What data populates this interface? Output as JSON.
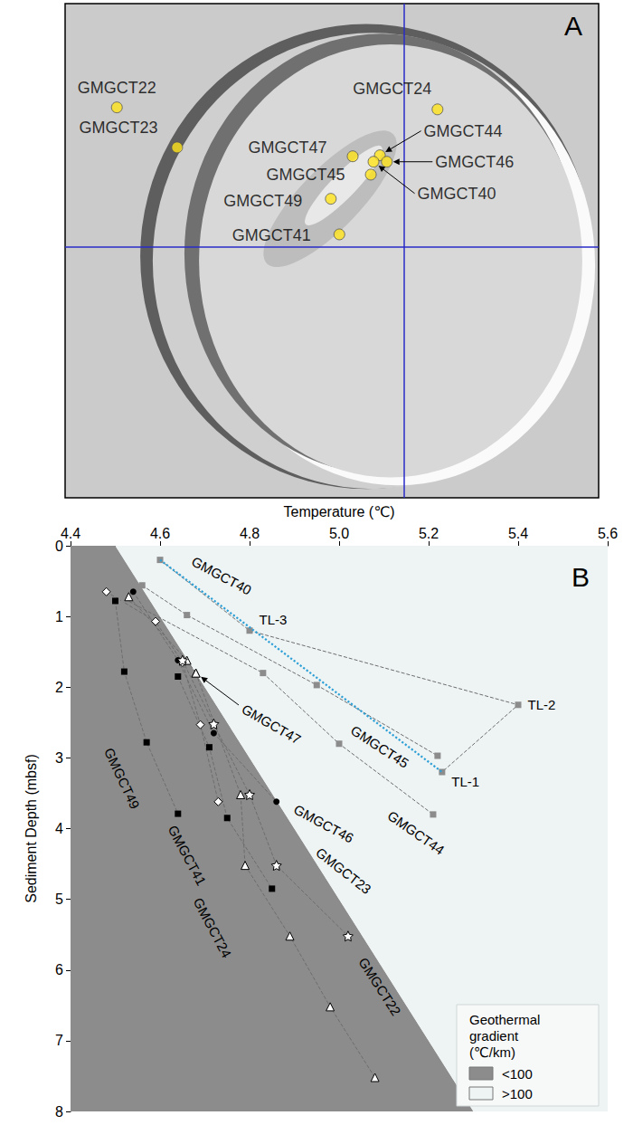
{
  "chart_data": [
    {
      "type": "scatter",
      "panel_label": "A",
      "xlim": [
        0,
        100
      ],
      "ylim": [
        0,
        100
      ],
      "tick_labels": false,
      "marker": "circle",
      "color": "#ffe41c",
      "points": [
        {
          "label": "GMGCT22",
          "x": 9.7,
          "y": 79.0
        },
        {
          "label": "GMGCT23",
          "x": 21.0,
          "y": 70.9
        },
        {
          "label": "GMGCT24",
          "x": 69.8,
          "y": 78.6
        },
        {
          "label": "GMGCT47",
          "x": 53.9,
          "y": 69.1
        },
        {
          "label": "GMGCT44",
          "x": 59.0,
          "y": 69.3
        },
        {
          "label": "GMGCT46",
          "x": 60.3,
          "y": 68.0
        },
        {
          "label": "GMGCT40",
          "x": 57.8,
          "y": 68.0
        },
        {
          "label": "GMGCT45",
          "x": 57.3,
          "y": 65.4
        },
        {
          "label": "GMGCT49",
          "x": 49.8,
          "y": 60.5
        },
        {
          "label": "GMGCT41",
          "x": 51.4,
          "y": 53.3
        }
      ],
      "crosshair": {
        "x": 63.6,
        "y": 50.8,
        "color": "#2a2ac8"
      }
    },
    {
      "type": "line",
      "panel_label": "B",
      "x_label": "Temperature (℃)",
      "y_label": "Sediment Depth (mbsf)",
      "xlim": [
        4.4,
        5.6
      ],
      "xticks": [
        4.4,
        4.6,
        4.8,
        {
          "value": 5,
          "label": "5.0"
        },
        5.2,
        5.4,
        5.6
      ],
      "ylim": [
        0,
        8
      ],
      "yticks": [
        0,
        1,
        2,
        3,
        4,
        5,
        6,
        7,
        8
      ],
      "grid": false,
      "series": [
        {
          "name": "GMGCT40",
          "color": "#8c8c8c",
          "marker": "square",
          "line_style": "dashed",
          "x": [
            4.6,
            4.8,
            5.4,
            5.23
          ],
          "values": [
            0.2,
            1.2,
            2.25,
            3.2
          ],
          "point_labels": [
            null,
            "TL-3",
            "TL-2",
            "TL-1"
          ]
        },
        {
          "name": "GMGCT45",
          "color": "#8c8c8c",
          "marker": "square",
          "line_style": "dashed",
          "x": [
            4.56,
            4.66,
            4.95,
            5.22
          ],
          "values": [
            0.56,
            0.98,
            1.97,
            2.97
          ]
        },
        {
          "name": "GMGCT44",
          "color": "#8c8c8c",
          "marker": "square",
          "line_style": "dashed",
          "x": [
            4.52,
            4.83,
            5.0,
            5.21
          ],
          "values": [
            0.75,
            1.8,
            2.8,
            3.8
          ]
        },
        {
          "name": "GMGCT47",
          "color": "#000000",
          "marker": "open_triangle",
          "line_style": "dashed",
          "x": [
            4.53,
            4.66,
            4.68
          ],
          "values": [
            0.72,
            1.62,
            1.8
          ]
        },
        {
          "name": "GMGCT46",
          "color": "#000000",
          "marker": "circle",
          "line_style": "dashed",
          "x": [
            4.54,
            4.64,
            4.72,
            4.86
          ],
          "values": [
            0.65,
            1.62,
            2.65,
            3.62
          ]
        },
        {
          "name": "GMGCT49",
          "color": "#000000",
          "marker": "square",
          "line_style": "dashed",
          "x": [
            4.5,
            4.52,
            4.57,
            4.64
          ],
          "values": [
            0.78,
            1.78,
            2.78,
            3.79
          ]
        },
        {
          "name": "GMGCT41",
          "color": "#000000",
          "marker": "open_diamond",
          "line_style": "dashed",
          "x": [
            4.48,
            4.59,
            4.65,
            4.69,
            4.73
          ],
          "values": [
            0.65,
            1.07,
            1.65,
            2.53,
            3.62
          ]
        },
        {
          "name": "GMGCT24",
          "color": "#000000",
          "marker": "square",
          "line_style": "dashed",
          "x": [
            4.64,
            4.71,
            4.75,
            4.85
          ],
          "values": [
            1.85,
            2.85,
            3.85,
            4.85
          ]
        },
        {
          "name": "GMGCT23",
          "color": "#000000",
          "marker": "open_star",
          "line_style": "dashed",
          "x": [
            4.65,
            4.72,
            4.8,
            4.86,
            5.02
          ],
          "values": [
            1.62,
            2.52,
            3.52,
            4.52,
            5.52
          ]
        },
        {
          "name": "GMGCT22",
          "color": "#000000",
          "marker": "open_triangle",
          "line_style": "dashed",
          "x": [
            4.68,
            4.78,
            4.79,
            4.89,
            4.98,
            5.08
          ],
          "values": [
            1.8,
            3.52,
            4.52,
            5.52,
            6.52,
            7.52
          ]
        }
      ],
      "fit": {
        "x": [
          4.6,
          5.23
        ],
        "values": [
          0.2,
          3.2
        ],
        "color": "#2b9fd6",
        "line_style": "dotted"
      },
      "gradient_boundary": {
        "x": [
          4.5,
          5.3
        ],
        "y": [
          0,
          8
        ]
      },
      "regions": [
        {
          "name": "<100",
          "color": "#8c8c8c"
        },
        {
          "name": ">100",
          "color": "#eef3f3"
        }
      ],
      "legend_title": "Geothermal gradient (℃/km)",
      "legend": "lower right"
    }
  ]
}
